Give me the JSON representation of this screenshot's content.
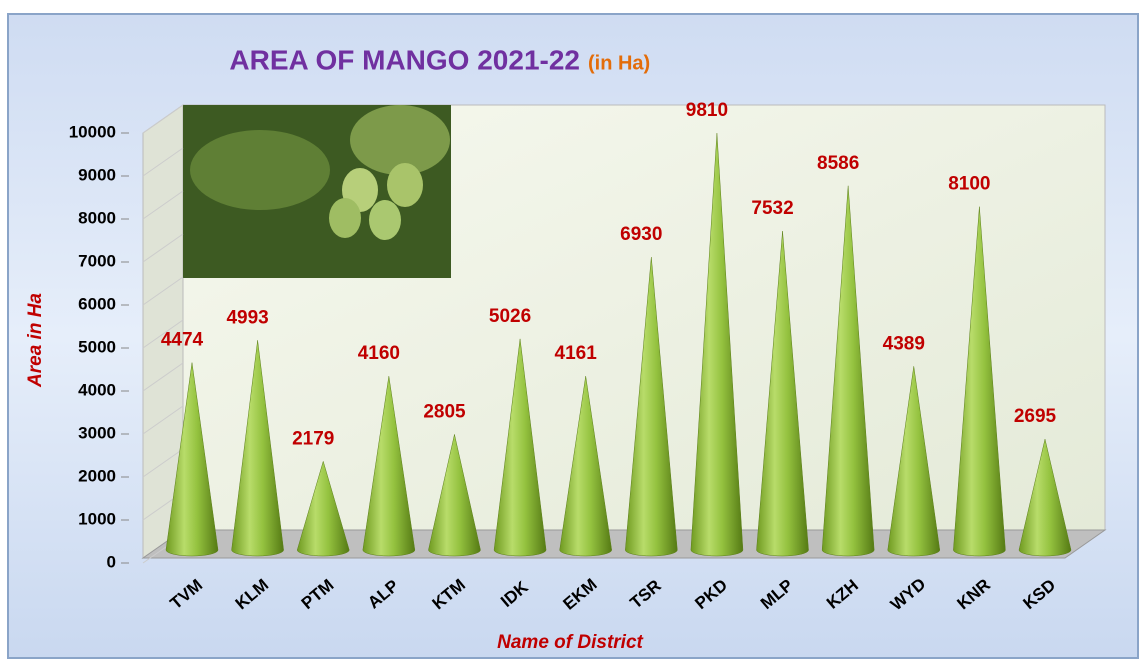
{
  "chart_data": {
    "type": "cone",
    "title": "AREA OF MANGO 2021-22",
    "subtitle": "(in Ha)",
    "x_label": "Name of District",
    "y_label": "Area in Ha",
    "categories": [
      "TVM",
      "KLM",
      "PTM",
      "ALP",
      "KTM",
      "IDK",
      "EKM",
      "TSR",
      "PKD",
      "MLP",
      "KZH",
      "WYD",
      "KNR",
      "KSD"
    ],
    "values": [
      4474,
      4993,
      2179,
      4160,
      2805,
      5026,
      4161,
      6930,
      9810,
      7532,
      8586,
      4389,
      8100,
      2695
    ],
    "color": "#8fbf3a",
    "ylim": [
      0,
      10000
    ],
    "yticks": [
      0,
      1000,
      2000,
      3000,
      4000,
      5000,
      6000,
      7000,
      8000,
      9000,
      10000
    ]
  }
}
